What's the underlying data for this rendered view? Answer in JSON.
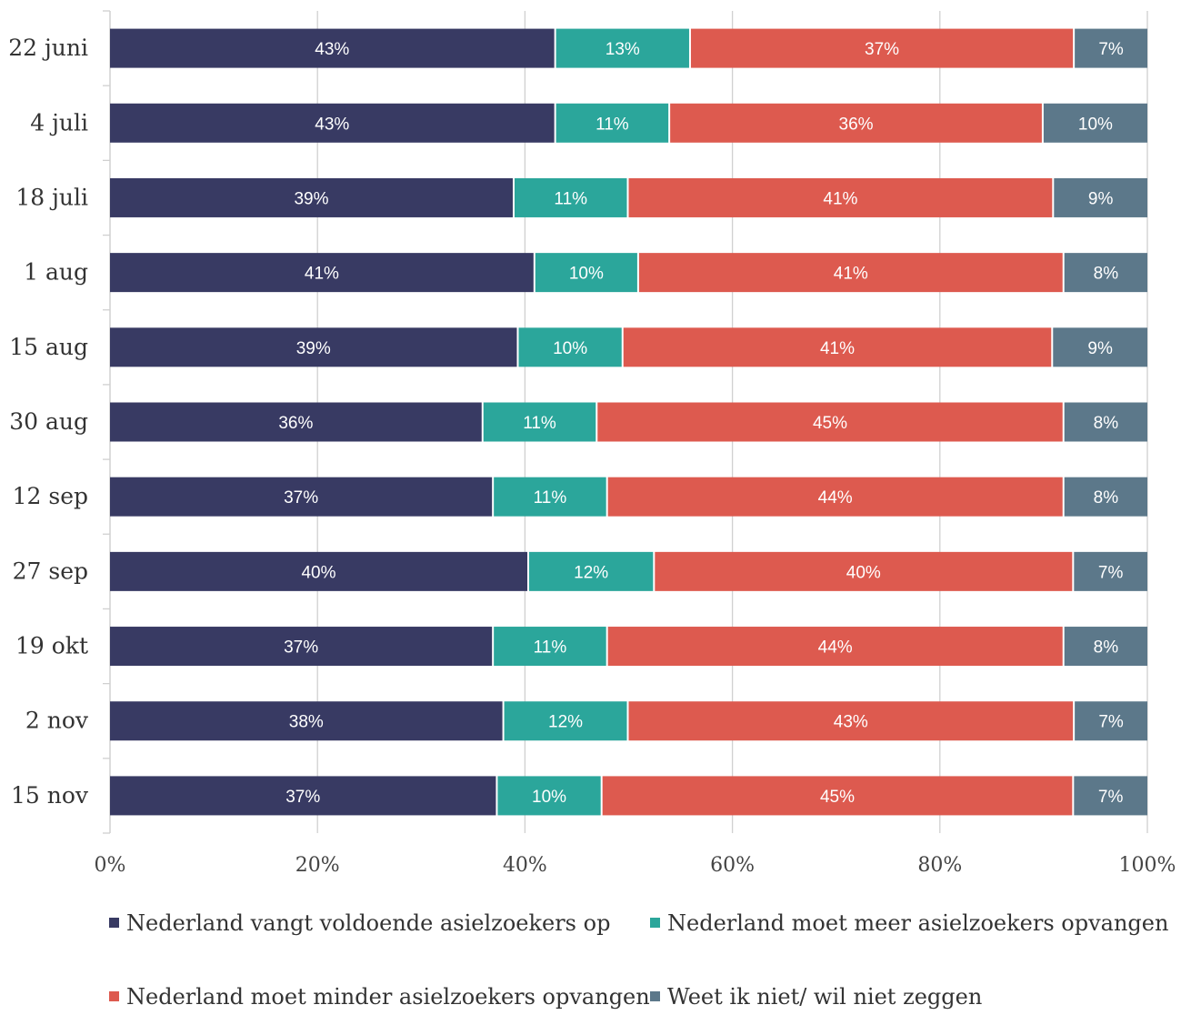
{
  "chart_data": {
    "type": "bar",
    "orientation": "horizontal",
    "stacked": true,
    "percent_stacked": true,
    "categories": [
      "22 juni",
      "4 juli",
      "18 juli",
      "1 aug",
      "15 aug",
      "30 aug",
      "12 sep",
      "27 sep",
      "19 okt",
      "2 nov",
      "15 nov"
    ],
    "series": [
      {
        "name": "Nederland vangt voldoende asielzoekers op",
        "color": "#383a63",
        "values": [
          43,
          43,
          39,
          41,
          39,
          36,
          37,
          40,
          37,
          38,
          37
        ],
        "labels": [
          "43%",
          "43%",
          "39%",
          "41%",
          "39%",
          "36%",
          "37%",
          "40%",
          "37%",
          "38%",
          "37%"
        ]
      },
      {
        "name": "Nederland moet meer asielzoekers opvangen",
        "color": "#2ba69b",
        "values": [
          13,
          11,
          11,
          10,
          10,
          11,
          11,
          12,
          11,
          12,
          10
        ],
        "labels": [
          "13%",
          "11%",
          "11%",
          "10%",
          "10%",
          "11%",
          "11%",
          "12%",
          "11%",
          "12%",
          "10%"
        ]
      },
      {
        "name": "Nederland moet minder asielzoekers opvangen",
        "color": "#dd5a4f",
        "values": [
          37,
          36,
          41,
          41,
          41,
          45,
          44,
          40,
          44,
          43,
          45
        ],
        "labels": [
          "37%",
          "36%",
          "41%",
          "41%",
          "41%",
          "45%",
          "44%",
          "40%",
          "44%",
          "43%",
          "45%"
        ]
      },
      {
        "name": "Weet ik niet/ wil niet zeggen",
        "color": "#5c788a",
        "values": [
          7,
          10,
          9,
          8,
          9,
          8,
          8,
          7,
          8,
          7,
          7
        ],
        "labels": [
          "7%",
          "10%",
          "9%",
          "8%",
          "9%",
          "8%",
          "8%",
          "7%",
          "8%",
          "7%",
          "7%"
        ]
      }
    ],
    "x_ticks": [
      "0%",
      "20%",
      "40%",
      "60%",
      "80%",
      "100%"
    ],
    "xlim": [
      0,
      100
    ],
    "grid": true,
    "legend_position": "bottom"
  }
}
